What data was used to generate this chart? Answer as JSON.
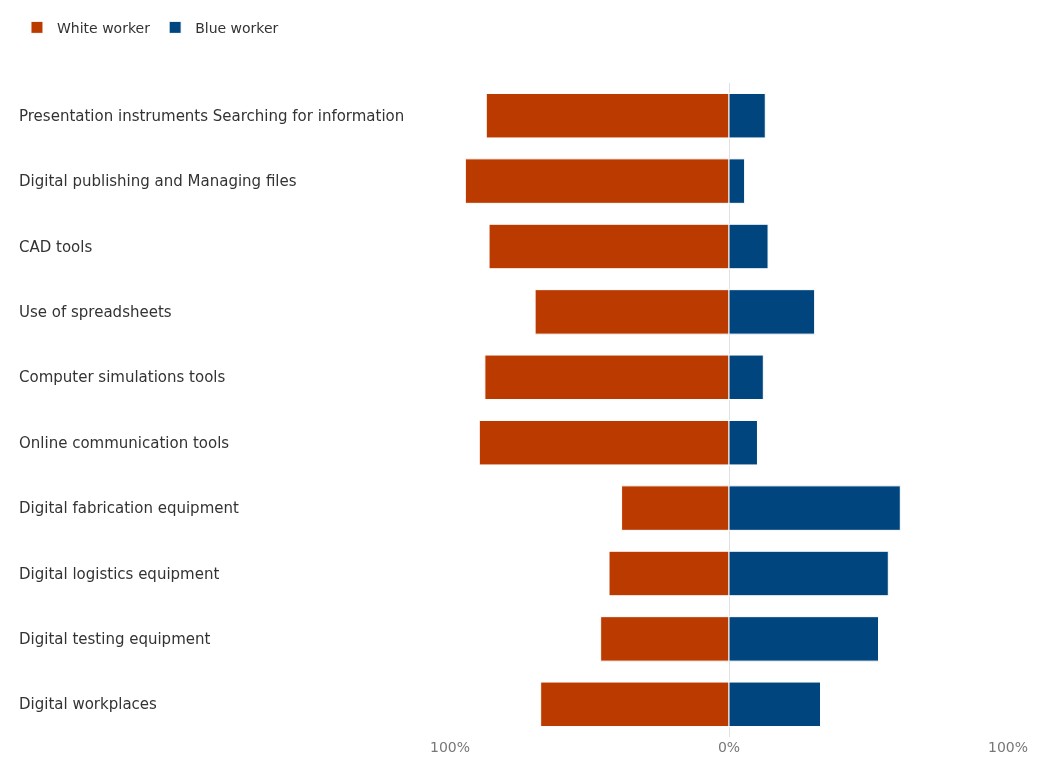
{
  "chart_data": {
    "type": "bar",
    "orientation": "horizontal",
    "categories": [
      "Presentation instruments Searching for information",
      "Digital publishing and Managing files",
      "CAD tools",
      "Use of spreadsheets",
      "Computer simulations tools",
      "Online communication tools",
      "Digital fabrication equipment",
      "Digital logistics equipment",
      "Digital testing equipment",
      "Digital workplaces"
    ],
    "series": [
      {
        "name": "White worker",
        "color": "#bb3a00",
        "values": [
          -87,
          -94.5,
          -86,
          -69.5,
          -87.5,
          -89.5,
          -38.5,
          -43,
          -46,
          -67.5
        ]
      },
      {
        "name": "Blue worker",
        "color": "#00457e",
        "values": [
          13,
          5.6,
          14,
          30.7,
          12.3,
          10.2,
          61.4,
          57.1,
          53.6,
          32.8
        ]
      }
    ],
    "xlim": [
      -100,
      100
    ],
    "xticks": [
      {
        "value": -100,
        "label": "100%"
      },
      {
        "value": 0,
        "label": "0%"
      },
      {
        "value": 100,
        "label": "100%"
      }
    ],
    "grid": "x",
    "legend": "top left",
    "stacked": true
  }
}
